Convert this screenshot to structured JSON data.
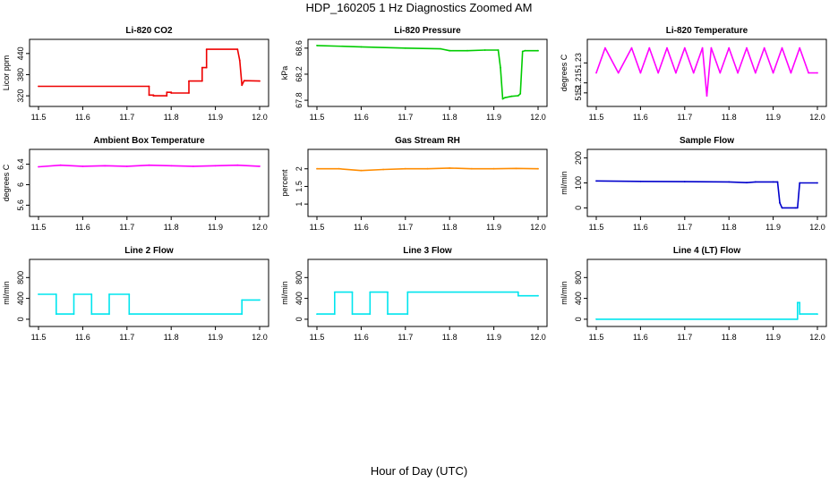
{
  "figure": {
    "title": "HDP_160205  1 Hz Diagnostics Zoomed AM",
    "xlabel": "Hour of Day (UTC)"
  },
  "chart_data": [
    {
      "type": "line",
      "title": "Li-820 CO2",
      "ylabel": "Licor ppm",
      "color": "#ee0000",
      "xlim": [
        11.5,
        12.0
      ],
      "ylim": [
        300,
        470
      ],
      "xticks": [
        "11.5",
        "11.6",
        "11.7",
        "11.8",
        "11.9",
        "12.0"
      ],
      "yticks": [
        320,
        380,
        440
      ],
      "series": [
        {
          "x": [
            11.5,
            11.75,
            11.75,
            11.76,
            11.76,
            11.79,
            11.79,
            11.8,
            11.8,
            11.84,
            11.84,
            11.87,
            11.87,
            11.88,
            11.88,
            11.95,
            11.955,
            11.96,
            11.965,
            12.0
          ],
          "y": [
            347,
            347,
            322,
            322,
            320,
            320,
            330,
            330,
            328,
            328,
            362,
            362,
            400,
            400,
            452,
            452,
            420,
            350,
            363,
            362
          ]
        }
      ]
    },
    {
      "type": "line",
      "title": "Li-820 Pressure",
      "ylabel": "kPa",
      "color": "#00cc00",
      "xlim": [
        11.5,
        12.0
      ],
      "ylim": [
        67.76,
        68.68
      ],
      "xticks": [
        "11.5",
        "11.6",
        "11.7",
        "11.8",
        "11.9",
        "12.0"
      ],
      "yticks": [
        67.8,
        68.2,
        68.6
      ],
      "series": [
        {
          "x": [
            11.5,
            11.6,
            11.7,
            11.78,
            11.8,
            11.84,
            11.88,
            11.91,
            11.915,
            11.92,
            11.925,
            11.94,
            11.955,
            11.96,
            11.965,
            11.97,
            12.0
          ],
          "y": [
            68.64,
            68.62,
            68.6,
            68.59,
            68.56,
            68.56,
            68.57,
            68.57,
            68.3,
            67.82,
            67.84,
            67.86,
            67.87,
            67.9,
            68.55,
            68.56,
            68.56
          ]
        }
      ]
    },
    {
      "type": "line",
      "title": "Li-820 Temperature",
      "ylabel": "degrees C",
      "color": "#ff00ff",
      "xlim": [
        11.5,
        12.0
      ],
      "ylim": [
        51.19,
        51.25
      ],
      "xticks": [
        "11.5",
        "11.6",
        "11.7",
        "11.8",
        "11.9",
        "12.0"
      ],
      "yticks": [
        51.2,
        51.21,
        51.23
      ],
      "series": [
        {
          "x": [
            11.5,
            11.52,
            11.55,
            11.58,
            11.6,
            11.62,
            11.64,
            11.66,
            11.68,
            11.7,
            11.72,
            11.74,
            11.75,
            11.76,
            11.78,
            11.8,
            11.82,
            11.84,
            11.86,
            11.88,
            11.9,
            11.92,
            11.94,
            11.96,
            11.98,
            12.0
          ],
          "y": [
            51.22,
            51.245,
            51.22,
            51.245,
            51.22,
            51.245,
            51.22,
            51.245,
            51.22,
            51.245,
            51.22,
            51.245,
            51.197,
            51.245,
            51.22,
            51.245,
            51.22,
            51.245,
            51.22,
            51.245,
            51.22,
            51.245,
            51.22,
            51.245,
            51.22,
            51.22
          ]
        }
      ]
    },
    {
      "type": "line",
      "title": "Ambient Box Temperature",
      "ylabel": "degrees C",
      "color": "#ff00ff",
      "xlim": [
        11.5,
        12.0
      ],
      "ylim": [
        5.45,
        6.62
      ],
      "xticks": [
        "11.5",
        "11.6",
        "11.7",
        "11.8",
        "11.9",
        "12.0"
      ],
      "yticks": [
        5.6,
        6.0,
        6.4
      ],
      "series": [
        {
          "x": [
            11.5,
            11.55,
            11.6,
            11.65,
            11.7,
            11.75,
            11.8,
            11.85,
            11.9,
            11.95,
            12.0
          ],
          "y": [
            6.35,
            6.38,
            6.36,
            6.37,
            6.36,
            6.38,
            6.37,
            6.36,
            6.37,
            6.38,
            6.36
          ]
        }
      ]
    },
    {
      "type": "line",
      "title": "Gas Stream RH",
      "ylabel": "percent",
      "color": "#ff8c00",
      "xlim": [
        11.5,
        12.0
      ],
      "ylim": [
        0.75,
        2.45
      ],
      "xticks": [
        "11.5",
        "11.6",
        "11.7",
        "11.8",
        "11.9",
        "12.0"
      ],
      "yticks": [
        1.0,
        1.5,
        2.0
      ],
      "series": [
        {
          "x": [
            11.5,
            11.55,
            11.6,
            11.65,
            11.7,
            11.75,
            11.8,
            11.85,
            11.9,
            11.95,
            12.0
          ],
          "y": [
            2.0,
            2.0,
            1.95,
            1.98,
            2.0,
            2.0,
            2.02,
            2.0,
            2.0,
            2.01,
            2.0
          ]
        }
      ]
    },
    {
      "type": "line",
      "title": "Sample Flow",
      "ylabel": "ml/min",
      "color": "#0000cc",
      "xlim": [
        11.5,
        12.0
      ],
      "ylim": [
        -20,
        220
      ],
      "xticks": [
        "11.5",
        "11.6",
        "11.7",
        "11.8",
        "11.9",
        "12.0"
      ],
      "yticks": [
        0,
        100,
        200
      ],
      "series": [
        {
          "x": [
            11.5,
            11.6,
            11.7,
            11.8,
            11.84,
            11.86,
            11.9,
            11.91,
            11.915,
            11.92,
            11.95,
            11.955,
            11.96,
            12.0
          ],
          "y": [
            108,
            106,
            105,
            104,
            101,
            104,
            104,
            104,
            20,
            0,
            0,
            0,
            100,
            100
          ]
        }
      ]
    },
    {
      "type": "line",
      "title": "Line 2 Flow",
      "ylabel": "ml/min",
      "color": "#00e5ee",
      "xlim": [
        11.5,
        12.0
      ],
      "ylim": [
        -70,
        1080
      ],
      "xticks": [
        "11.5",
        "11.6",
        "11.7",
        "11.8",
        "11.9",
        "12.0"
      ],
      "yticks": [
        0,
        400,
        800
      ],
      "series": [
        {
          "x": [
            11.5,
            11.54,
            11.54,
            11.58,
            11.58,
            11.62,
            11.62,
            11.66,
            11.66,
            11.705,
            11.705,
            11.96,
            11.96,
            12.0
          ],
          "y": [
            480,
            480,
            100,
            100,
            480,
            480,
            100,
            100,
            480,
            480,
            100,
            100,
            370,
            370
          ]
        }
      ]
    },
    {
      "type": "line",
      "title": "Line 3 Flow",
      "ylabel": "ml/min",
      "color": "#00e5ee",
      "xlim": [
        11.5,
        12.0
      ],
      "ylim": [
        -70,
        1080
      ],
      "xticks": [
        "11.5",
        "11.6",
        "11.7",
        "11.8",
        "11.9",
        "12.0"
      ],
      "yticks": [
        0,
        400,
        800
      ],
      "series": [
        {
          "x": [
            11.5,
            11.54,
            11.54,
            11.58,
            11.58,
            11.62,
            11.62,
            11.66,
            11.66,
            11.705,
            11.705,
            11.955,
            11.955,
            12.0
          ],
          "y": [
            100,
            100,
            520,
            520,
            100,
            100,
            520,
            520,
            100,
            100,
            520,
            520,
            450,
            450
          ]
        }
      ]
    },
    {
      "type": "line",
      "title": "Line 4 (LT) Flow",
      "ylabel": "ml/min",
      "color": "#00e5ee",
      "xlim": [
        11.5,
        12.0
      ],
      "ylim": [
        -70,
        1080
      ],
      "xticks": [
        "11.5",
        "11.6",
        "11.7",
        "11.8",
        "11.9",
        "12.0"
      ],
      "yticks": [
        0,
        400,
        800
      ],
      "series": [
        {
          "x": [
            11.5,
            11.955,
            11.955,
            11.96,
            11.96,
            12.0
          ],
          "y": [
            0,
            0,
            320,
            320,
            100,
            100
          ]
        }
      ]
    }
  ]
}
